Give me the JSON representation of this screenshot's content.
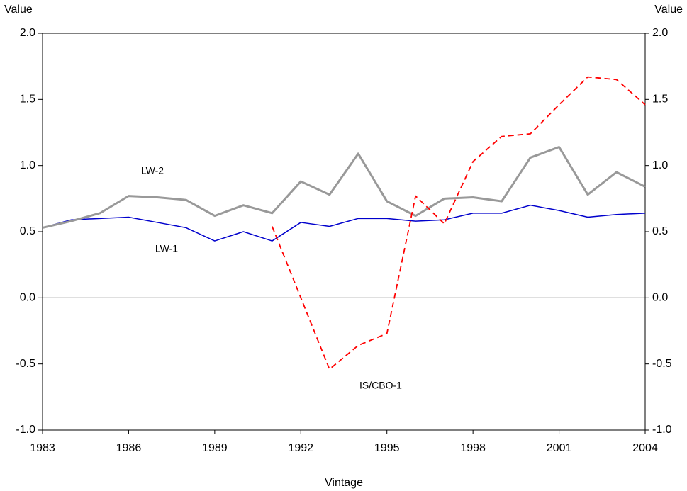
{
  "chart_data": {
    "type": "line",
    "x_label": "Vintage",
    "y_label": "Value",
    "y2_label": "Value",
    "x": [
      1983,
      1984,
      1985,
      1986,
      1987,
      1988,
      1989,
      1990,
      1991,
      1992,
      1993,
      1994,
      1995,
      1996,
      1997,
      1998,
      1999,
      2000,
      2001,
      2002,
      2003,
      2004
    ],
    "series": [
      {
        "name": "LW-1",
        "color": "#0000cc",
        "dashed": false,
        "width": 1.5,
        "values": [
          0.53,
          0.59,
          0.6,
          0.61,
          0.57,
          0.53,
          0.43,
          0.5,
          0.43,
          0.57,
          0.54,
          0.6,
          0.6,
          0.58,
          0.59,
          0.64,
          0.64,
          0.7,
          0.66,
          0.61,
          0.63,
          0.64
        ]
      },
      {
        "name": "LW-2",
        "color": "#999999",
        "dashed": false,
        "width": 3,
        "values": [
          0.53,
          0.58,
          0.64,
          0.77,
          0.76,
          0.74,
          0.62,
          0.7,
          0.64,
          0.88,
          0.78,
          1.09,
          0.73,
          0.62,
          0.75,
          0.76,
          0.73,
          1.06,
          1.14,
          0.78,
          0.95,
          0.84
        ]
      },
      {
        "name": "IS/CBO-1",
        "color": "#ff0000",
        "dashed": true,
        "width": 1.8,
        "values": [
          null,
          null,
          null,
          null,
          null,
          null,
          null,
          null,
          0.54,
          0.0,
          -0.54,
          -0.36,
          -0.27,
          0.77,
          0.56,
          1.03,
          1.22,
          1.24,
          1.46,
          1.67,
          1.65,
          1.46
        ]
      }
    ],
    "xlim": [
      1983,
      2004
    ],
    "xticks": [
      1983,
      1986,
      1989,
      1992,
      1995,
      1998,
      2001,
      2004
    ],
    "ylim": [
      -1.0,
      2.0
    ],
    "yticks": [
      {
        "value": -1,
        "label": "-1.0"
      },
      -0.5,
      {
        "value": 0,
        "label": "0.0"
      },
      0.5,
      {
        "value": 1,
        "label": "1.0"
      },
      1.5,
      {
        "value": 2,
        "label": "2.0"
      }
    ],
    "y2lim": [
      -1.0,
      2.0
    ],
    "y2ticks": [
      {
        "value": -1,
        "label": "-1.0"
      },
      -0.5,
      {
        "value": 0,
        "label": "0.0"
      },
      0.5,
      {
        "value": 1,
        "label": "1.0"
      },
      1.5,
      {
        "value": 2,
        "label": "2.0"
      }
    ]
  }
}
